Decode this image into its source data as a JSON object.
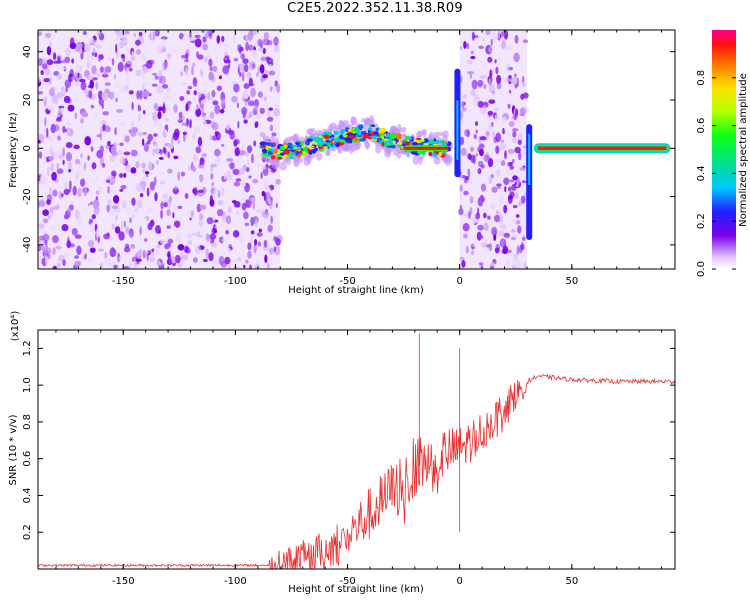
{
  "title": "C2E5.2022.352.11.38.R09",
  "chart_data": [
    {
      "type": "heatmap",
      "xlabel": "Height of straight line (km)",
      "ylabel": "Frequency (Hz)",
      "xlim": [
        -188,
        96
      ],
      "ylim": [
        -50,
        49
      ],
      "xticks": [
        -150,
        -100,
        -50,
        0,
        50
      ],
      "yticks": [
        -40,
        -20,
        0,
        20,
        40
      ],
      "noise_regions": [
        [
          -188,
          -80
        ],
        [
          0,
          30
        ]
      ],
      "signal_track": [
        {
          "x": -88,
          "y": 0
        },
        {
          "x": -80,
          "y": -2
        },
        {
          "x": -70,
          "y": 0
        },
        {
          "x": -60,
          "y": 3
        },
        {
          "x": -50,
          "y": 5
        },
        {
          "x": -40,
          "y": 7
        },
        {
          "x": -30,
          "y": 3
        },
        {
          "x": -20,
          "y": 1
        },
        {
          "x": -8,
          "y": 0
        },
        {
          "x": -4,
          "y": 0
        }
      ],
      "carrier_line": {
        "x_start": 33,
        "x_end": 94,
        "y": 0
      },
      "colorbar": {
        "label": "Normalized spectral amplitude",
        "range": [
          0.0,
          1.0
        ],
        "ticks": [
          "0.0",
          "0.2",
          "0.4",
          "0.6",
          "0.8"
        ]
      }
    },
    {
      "type": "line",
      "xlabel": "Height of straight line (km)",
      "ylabel": "SNR (10 * v/v)",
      "y_multiplier": "(x10⁴)",
      "xlim": [
        -188,
        96
      ],
      "ylim": [
        0,
        1.3
      ],
      "xticks": [
        -150,
        -100,
        -50,
        0,
        50
      ],
      "yticks": [
        "0.2",
        "0.4",
        "0.6",
        "0.8",
        "1.0",
        "1.2"
      ],
      "series_color": "#e83030",
      "key_points": [
        {
          "x": -188,
          "y": 0.02
        },
        {
          "x": -85,
          "y": 0.02
        },
        {
          "x": -75,
          "y": 0.05
        },
        {
          "x": -60,
          "y": 0.1
        },
        {
          "x": -50,
          "y": 0.18
        },
        {
          "x": -40,
          "y": 0.3
        },
        {
          "x": -30,
          "y": 0.42
        },
        {
          "x": -20,
          "y": 0.55
        },
        {
          "x": -10,
          "y": 0.62
        },
        {
          "x": 0,
          "y": 0.65
        },
        {
          "x": 10,
          "y": 0.75
        },
        {
          "x": 20,
          "y": 0.88
        },
        {
          "x": 30,
          "y": 1.02
        },
        {
          "x": 35,
          "y": 1.05
        },
        {
          "x": 50,
          "y": 1.03
        },
        {
          "x": 70,
          "y": 1.02
        },
        {
          "x": 96,
          "y": 1.02
        }
      ],
      "spikes": [
        {
          "x": -18,
          "y": 1.28
        },
        {
          "x": 0,
          "y": 1.2
        },
        {
          "x": 0,
          "y": 0.2
        }
      ]
    }
  ]
}
